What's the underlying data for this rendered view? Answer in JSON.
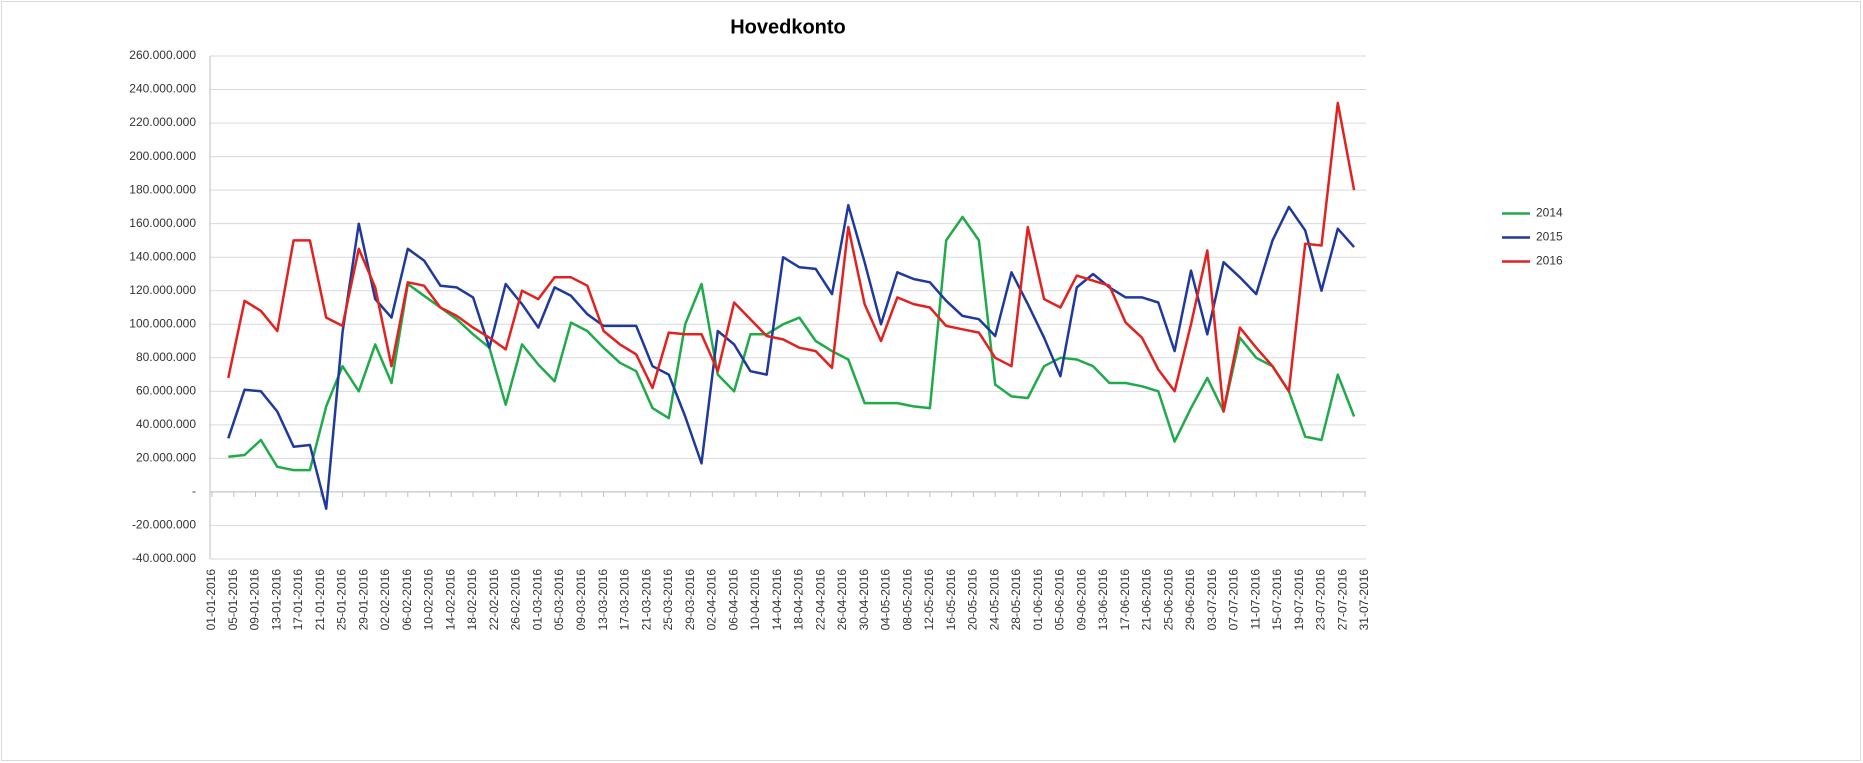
{
  "chart_data": {
    "type": "line",
    "title": "Hovedkonto",
    "x": [
      "04-01-2016",
      "07-01-2016",
      "10-01-2016",
      "13-01-2016",
      "16-01-2016",
      "19-01-2016",
      "22-01-2016",
      "25-01-2016",
      "28-01-2016",
      "31-01-2016",
      "03-02-2016",
      "06-02-2016",
      "09-02-2016",
      "12-02-2016",
      "15-02-2016",
      "18-02-2016",
      "21-02-2016",
      "24-02-2016",
      "27-02-2016",
      "01-03-2016",
      "04-03-2016",
      "07-03-2016",
      "10-03-2016",
      "13-03-2016",
      "16-03-2016",
      "19-03-2016",
      "22-03-2016",
      "25-03-2016",
      "28-03-2016",
      "31-03-2016",
      "03-04-2016",
      "06-04-2016",
      "09-04-2016",
      "12-04-2016",
      "15-04-2016",
      "18-04-2016",
      "21-04-2016",
      "24-04-2016",
      "27-04-2016",
      "30-04-2016",
      "03-05-2016",
      "06-05-2016",
      "09-05-2016",
      "12-05-2016",
      "15-05-2016",
      "18-05-2016",
      "21-05-2016",
      "24-05-2016",
      "27-05-2016",
      "30-05-2016",
      "02-06-2016",
      "05-06-2016",
      "08-06-2016",
      "11-06-2016",
      "14-06-2016",
      "17-06-2016",
      "20-06-2016",
      "23-06-2016",
      "26-06-2016",
      "29-06-2016",
      "02-07-2016",
      "05-07-2016",
      "08-07-2016",
      "11-07-2016",
      "14-07-2016",
      "17-07-2016",
      "20-07-2016",
      "23-07-2016",
      "26-07-2016",
      "29-07-2016"
    ],
    "series": [
      {
        "name": "2014",
        "color": "#1fab4a",
        "values": [
          21000000,
          22000000,
          31000000,
          15000000,
          13000000,
          13000000,
          51000000,
          75000000,
          60000000,
          88000000,
          65000000,
          124000000,
          117000000,
          110000000,
          103000000,
          94000000,
          86000000,
          52000000,
          88000000,
          76000000,
          66000000,
          101000000,
          96000000,
          86000000,
          77000000,
          72000000,
          50000000,
          44000000,
          100000000,
          124000000,
          70000000,
          60000000,
          94000000,
          94000000,
          100000000,
          104000000,
          90000000,
          84000000,
          79000000,
          53000000,
          53000000,
          53000000,
          51000000,
          50000000,
          150000000,
          164000000,
          150000000,
          64000000,
          57000000,
          56000000,
          75000000,
          80000000,
          79000000,
          75000000,
          65000000,
          65000000,
          63000000,
          60000000,
          30000000,
          50000000,
          68000000,
          48000000,
          92000000,
          80000000,
          75000000,
          60000000,
          33000000,
          31000000,
          70000000,
          45000000
        ]
      },
      {
        "name": "2015",
        "color": "#1f3a9c",
        "values": [
          32000000,
          61000000,
          60000000,
          48000000,
          27000000,
          28000000,
          -10000000,
          95000000,
          160000000,
          115000000,
          104000000,
          145000000,
          138000000,
          123000000,
          122000000,
          116000000,
          86000000,
          124000000,
          112000000,
          98000000,
          122000000,
          117000000,
          106000000,
          99000000,
          99000000,
          99000000,
          75000000,
          70000000,
          45000000,
          17000000,
          96000000,
          88000000,
          72000000,
          70000000,
          140000000,
          134000000,
          133000000,
          118000000,
          171000000,
          137000000,
          100000000,
          131000000,
          127000000,
          125000000,
          114000000,
          105000000,
          103000000,
          93000000,
          131000000,
          112000000,
          92000000,
          69000000,
          122000000,
          130000000,
          122000000,
          116000000,
          116000000,
          113000000,
          84000000,
          132000000,
          94000000,
          137000000,
          128000000,
          118000000,
          150000000,
          170000000,
          156000000,
          120000000,
          157000000,
          146000000
        ]
      },
      {
        "name": "2016",
        "color": "#e3211e",
        "values": [
          68000000,
          114000000,
          108000000,
          96000000,
          150000000,
          150000000,
          104000000,
          99000000,
          145000000,
          122000000,
          75000000,
          125000000,
          123000000,
          110000000,
          105000000,
          98000000,
          92000000,
          85000000,
          120000000,
          115000000,
          128000000,
          128000000,
          123000000,
          96000000,
          88000000,
          82000000,
          62000000,
          95000000,
          94000000,
          94000000,
          72000000,
          113000000,
          103000000,
          93000000,
          91000000,
          86000000,
          84000000,
          74000000,
          158000000,
          112000000,
          90000000,
          116000000,
          112000000,
          110000000,
          99000000,
          97000000,
          95000000,
          80000000,
          75000000,
          158000000,
          115000000,
          110000000,
          129000000,
          126000000,
          123000000,
          101000000,
          92000000,
          73000000,
          60000000,
          100000000,
          144000000,
          48000000,
          98000000,
          86000000,
          75000000,
          60000000,
          148000000,
          147000000,
          232000000,
          180000000
        ]
      }
    ],
    "xlim": [
      "01-01-2016",
      "31-07-2016"
    ],
    "xticks": [
      "01-01-2016",
      "05-01-2016",
      "09-01-2016",
      "13-01-2016",
      "17-01-2016",
      "21-01-2016",
      "25-01-2016",
      "29-01-2016",
      "02-02-2016",
      "06-02-2016",
      "10-02-2016",
      "14-02-2016",
      "18-02-2016",
      "22-02-2016",
      "26-02-2016",
      "01-03-2016",
      "05-03-2016",
      "09-03-2016",
      "13-03-2016",
      "17-03-2016",
      "21-03-2016",
      "25-03-2016",
      "29-03-2016",
      "02-04-2016",
      "06-04-2016",
      "10-04-2016",
      "14-04-2016",
      "18-04-2016",
      "22-04-2016",
      "26-04-2016",
      "30-04-2016",
      "04-05-2016",
      "08-05-2016",
      "12-05-2016",
      "16-05-2016",
      "20-05-2016",
      "24-05-2016",
      "28-05-2016",
      "01-06-2016",
      "05-06-2016",
      "09-06-2016",
      "13-06-2016",
      "17-06-2016",
      "21-06-2016",
      "25-06-2016",
      "29-06-2016",
      "03-07-2016",
      "07-07-2016",
      "11-07-2016",
      "15-07-2016",
      "19-07-2016",
      "23-07-2016",
      "27-07-2016",
      "31-07-2016"
    ],
    "ylim": [
      -40000000,
      260000000
    ],
    "yticks": [
      {
        "value": -40000000,
        "label": "-40.000.000"
      },
      {
        "value": -20000000,
        "label": "-20.000.000"
      },
      {
        "value": 0,
        "label": "-"
      },
      {
        "value": 20000000,
        "label": "20.000.000"
      },
      {
        "value": 40000000,
        "label": "40.000.000"
      },
      {
        "value": 60000000,
        "label": "60.000.000"
      },
      {
        "value": 80000000,
        "label": "80.000.000"
      },
      {
        "value": 100000000,
        "label": "100.000.000"
      },
      {
        "value": 120000000,
        "label": "120.000.000"
      },
      {
        "value": 140000000,
        "label": "140.000.000"
      },
      {
        "value": 160000000,
        "label": "160.000.000"
      },
      {
        "value": 180000000,
        "label": "180.000.000"
      },
      {
        "value": 200000000,
        "label": "200.000.000"
      },
      {
        "value": 220000000,
        "label": "220.000.000"
      },
      {
        "value": 240000000,
        "label": "240.000.000"
      },
      {
        "value": 260000000,
        "label": "260.000.000"
      }
    ],
    "grid": true,
    "legend": "right"
  }
}
